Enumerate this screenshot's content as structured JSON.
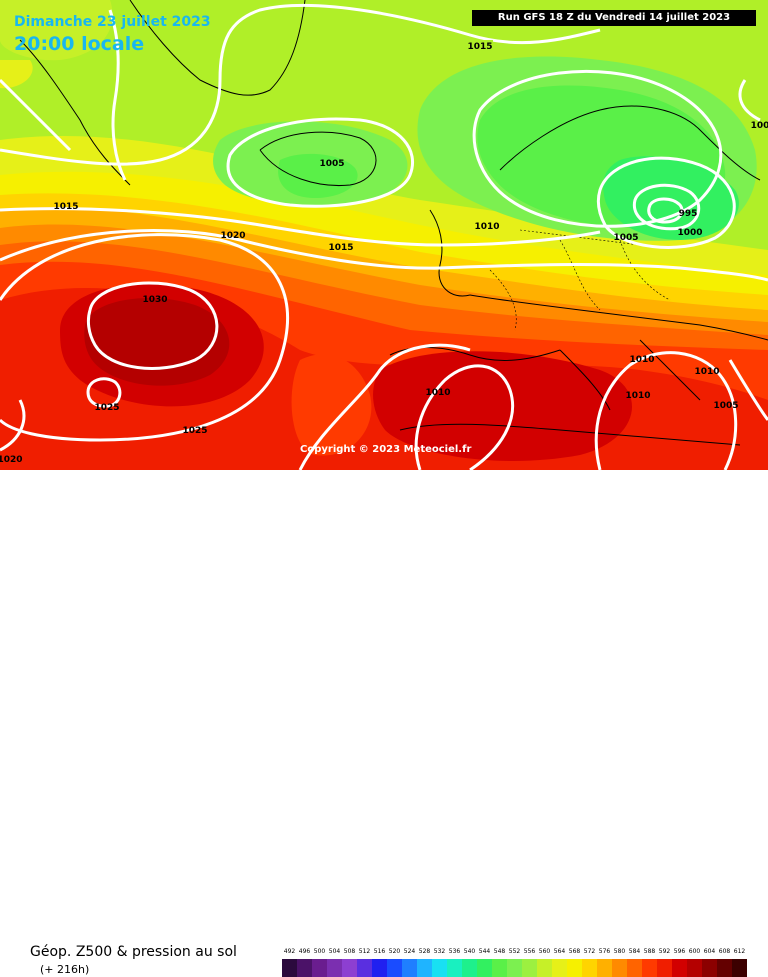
{
  "header": {
    "date": "Dimanche 23 juillet 2023",
    "time": "20:00 locale",
    "run": "Run GFS 18 Z du Vendredi 14 juillet 2023"
  },
  "copyright": "Copyright © 2023 Meteociel.fr",
  "footer": {
    "title": "Géop. Z500 & pression au sol",
    "lead": "(+ 216h)"
  },
  "isobar_labels": [
    "1015",
    "1005",
    "1015",
    "1020",
    "1015",
    "1010",
    "1005",
    "995",
    "1000",
    "1030",
    "1025",
    "1025",
    "1010",
    "1010",
    "1010",
    "1010",
    "1005",
    "1020",
    "100"
  ],
  "legend": {
    "values": [
      "492",
      "496",
      "500",
      "504",
      "508",
      "512",
      "516",
      "520",
      "524",
      "528",
      "532",
      "536",
      "540",
      "544",
      "548",
      "552",
      "556",
      "560",
      "564",
      "568",
      "572",
      "576",
      "580",
      "584",
      "588",
      "592",
      "596",
      "600",
      "604",
      "608",
      "612"
    ],
    "colors": [
      "#2b0a3d",
      "#4b1268",
      "#6a1d8f",
      "#7b2fb0",
      "#8d3fd1",
      "#5a2fe0",
      "#2020f0",
      "#1a4cff",
      "#1f7fff",
      "#1fb4ff",
      "#19e0f2",
      "#19f0c0",
      "#1ef08c",
      "#32f060",
      "#5af048",
      "#7cf050",
      "#9cf040",
      "#c6f028",
      "#e6f018",
      "#f6f000",
      "#ffd400",
      "#ffb000",
      "#ff8a00",
      "#ff6400",
      "#ff3a00",
      "#f01e00",
      "#d20000",
      "#b40000",
      "#8c0000",
      "#640000",
      "#3c0000"
    ]
  },
  "colors": {
    "accent_text": "#19b7ef",
    "isobar": "#ffffff"
  }
}
